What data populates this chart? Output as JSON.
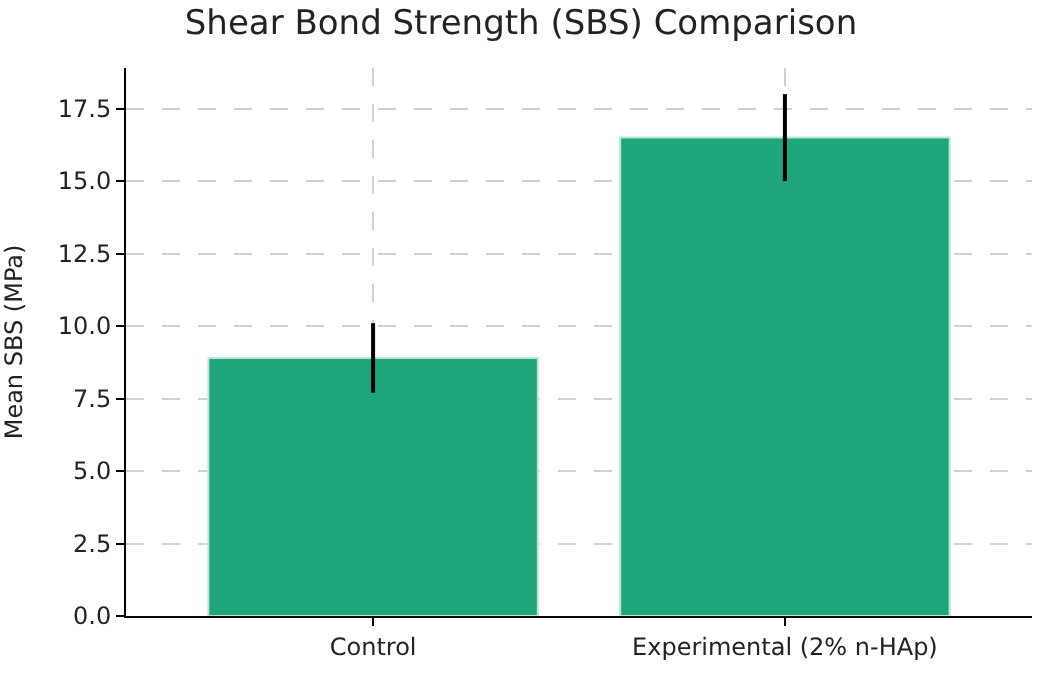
{
  "chart_data": {
    "type": "bar",
    "title": "Shear Bond Strength (SBS) Comparison",
    "ylabel": "Mean SBS (MPa)",
    "categories": [
      "Control",
      "Experimental (2% n-HAp)"
    ],
    "values": [
      8.9,
      16.5
    ],
    "errors": [
      1.2,
      1.5
    ],
    "color": "#1fa47e",
    "ylim": [
      0,
      18.9
    ],
    "yticks": [
      {
        "value": 0,
        "label": "0.0"
      },
      {
        "value": 2.5,
        "label": "2.5"
      },
      {
        "value": 5,
        "label": "5.0"
      },
      {
        "value": 7.5,
        "label": "7.5"
      },
      {
        "value": 10,
        "label": "10.0"
      },
      {
        "value": 12.5,
        "label": "12.5"
      },
      {
        "value": 15,
        "label": "15.0"
      },
      {
        "value": 17.5,
        "label": "17.5"
      }
    ],
    "grid": true
  }
}
